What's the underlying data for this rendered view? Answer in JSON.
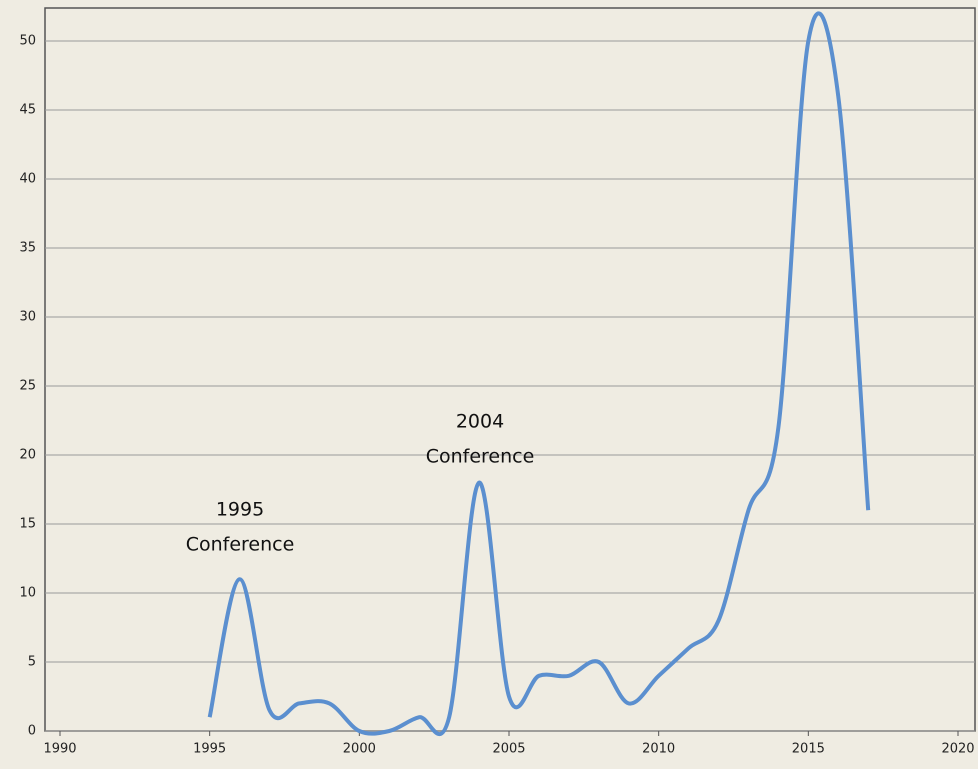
{
  "chart_data": {
    "type": "line",
    "x": [
      1995,
      1996,
      1997,
      1998,
      1999,
      2000,
      2001,
      2002,
      2003,
      2004,
      2005,
      2006,
      2007,
      2008,
      2009,
      2010,
      2011,
      2012,
      2013,
      2014,
      2015,
      2016,
      2017
    ],
    "series": [
      {
        "name": "",
        "color": "#5b8fcf",
        "values": [
          1,
          11,
          1.5,
          2,
          2,
          0,
          0,
          1,
          1,
          18,
          2.5,
          4,
          4,
          5,
          2,
          4,
          6,
          8,
          16,
          22,
          50,
          46,
          16
        ]
      }
    ],
    "xlim": [
      1990,
      2020
    ],
    "xticks": [
      1990,
      1995,
      2000,
      2005,
      2010,
      2015,
      2020
    ],
    "ylim": [
      0,
      50
    ],
    "yticks": [
      0,
      5,
      10,
      15,
      20,
      25,
      30,
      35,
      40,
      45,
      50
    ],
    "grid": true,
    "annotations": [
      [
        "1995",
        "Conference"
      ],
      [
        "2004",
        "Conference"
      ]
    ]
  }
}
